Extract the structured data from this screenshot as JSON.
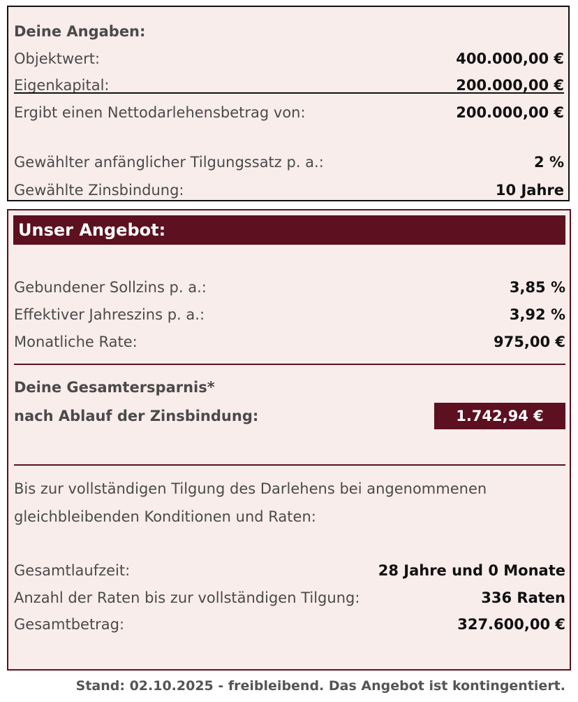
{
  "input": {
    "heading": "Deine Angaben:",
    "rows": [
      {
        "label": "Objektwert:",
        "value": "400.000,00 €"
      },
      {
        "label": "Eigenkapital:",
        "value": "200.000,00 €"
      },
      {
        "label": "Ergibt einen Nettodarlehensbetrag von:",
        "value": "200.000,00 €"
      },
      {
        "label": "Gewählter anfänglicher Tilgungssatz p. a.:",
        "value": "2 %"
      },
      {
        "label": "Gewählte Zinsbindung:",
        "value": "10 Jahre"
      }
    ]
  },
  "offer": {
    "heading": "Unser Angebot:",
    "rows": [
      {
        "label": "Gebundener Sollzins p. a.:",
        "value": "3,85 %"
      },
      {
        "label": "Effektiver Jahreszins p. a.:",
        "value": "3,92 %"
      },
      {
        "label": "Monatliche Rate:",
        "value": "975,00 €"
      }
    ],
    "savings_line1": "Deine Gesamtersparnis*",
    "savings_line2": "nach Ablauf der Zinsbindung:",
    "savings_value": "1.742,94 €",
    "note": "Bis zur vollständigen Tilgung des Darlehens bei angenommenen gleichbleibenden Konditionen und Raten:",
    "totals": [
      {
        "label": "Gesamtlaufzeit:",
        "value": "28 Jahre und 0 Monate"
      },
      {
        "label": "Anzahl der Raten bis zur vollständigen Tilgung:",
        "value": "336 Raten"
      },
      {
        "label": "Gesamtbetrag:",
        "value": "327.600,00 €"
      }
    ]
  },
  "footer": "Stand: 02.10.2025 - freibleibend. Das Angebot ist kontingentiert.",
  "colors": {
    "accent": "#5c1020",
    "panel_bg": "#f9edeb"
  }
}
